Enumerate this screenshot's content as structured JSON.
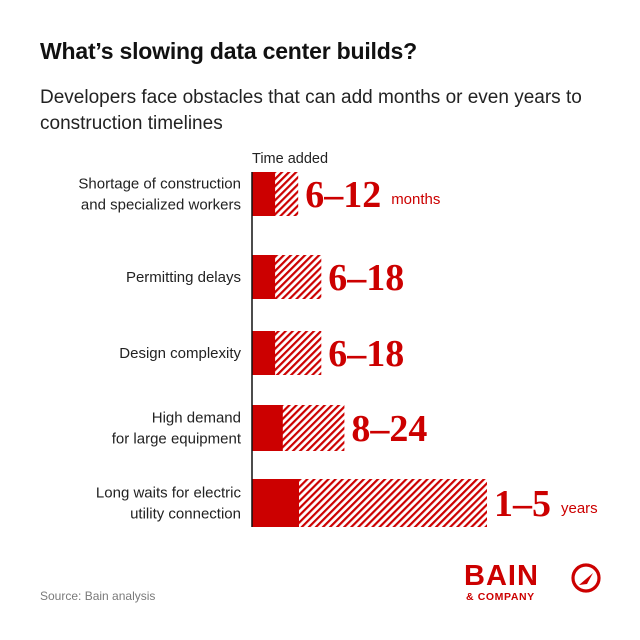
{
  "title": "What’s slowing data center builds?",
  "subtitle": "Developers face obstacles that can add months or even years to construction timelines",
  "source": "Source: Bain analysis",
  "logo": {
    "word": "BAIN",
    "sub": "& COMPANY",
    "mark_icon": "bain-compass-icon"
  },
  "colors": {
    "accent": "#cc0000",
    "axis": "#111111",
    "text": "#222222"
  },
  "chart_data": {
    "type": "bar",
    "orientation": "horizontal",
    "stacked_range": true,
    "axis_title": "Time added",
    "categories": [
      [
        "Shortage of construction",
        "and specialized workers"
      ],
      [
        "Permitting delays"
      ],
      [
        "Design complexity"
      ],
      [
        "High demand",
        "for large equipment"
      ],
      [
        "Long waits for electric",
        "utility connection"
      ]
    ],
    "ranges": [
      {
        "min": 6,
        "max": 12,
        "unit": "months",
        "label": "6–12",
        "unit_label": "months"
      },
      {
        "min": 6,
        "max": 18,
        "unit": "months",
        "label": "6–18",
        "unit_label": ""
      },
      {
        "min": 6,
        "max": 18,
        "unit": "months",
        "label": "6–18",
        "unit_label": ""
      },
      {
        "min": 8,
        "max": 24,
        "unit": "months",
        "label": "8–24",
        "unit_label": ""
      },
      {
        "min": 1,
        "max": 5,
        "unit": "years",
        "label": "1–5",
        "unit_label": "years"
      }
    ],
    "legend": "none",
    "grid": false
  }
}
